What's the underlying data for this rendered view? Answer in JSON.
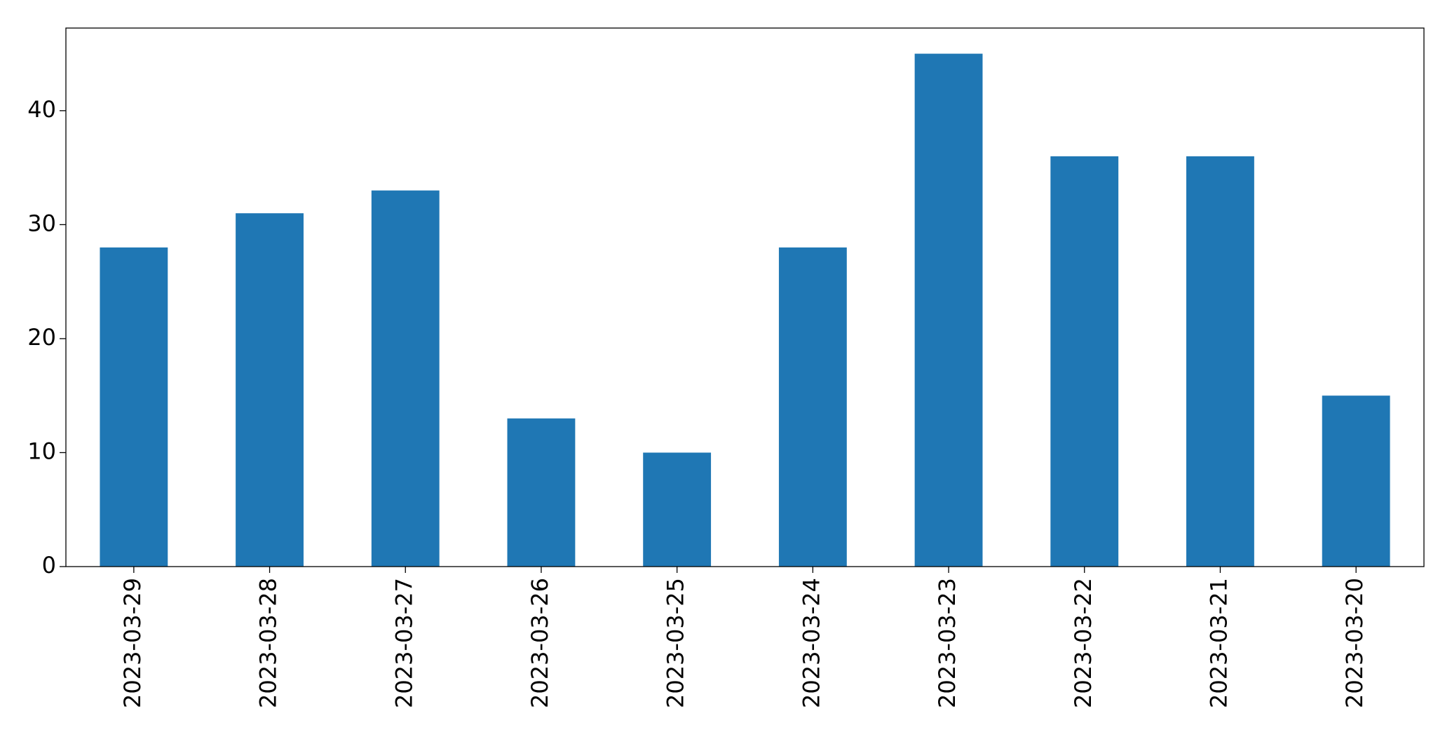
{
  "chart_data": {
    "type": "bar",
    "categories": [
      "2023-03-29",
      "2023-03-28",
      "2023-03-27",
      "2023-03-26",
      "2023-03-25",
      "2023-03-24",
      "2023-03-23",
      "2023-03-22",
      "2023-03-21",
      "2023-03-20"
    ],
    "values": [
      28,
      31,
      33,
      13,
      10,
      28,
      45,
      36,
      36,
      15
    ],
    "color": "#1f77b4",
    "ylim": [
      0,
      47.25
    ],
    "yticks": [
      0,
      10,
      20,
      30,
      40
    ],
    "grid": false
  }
}
